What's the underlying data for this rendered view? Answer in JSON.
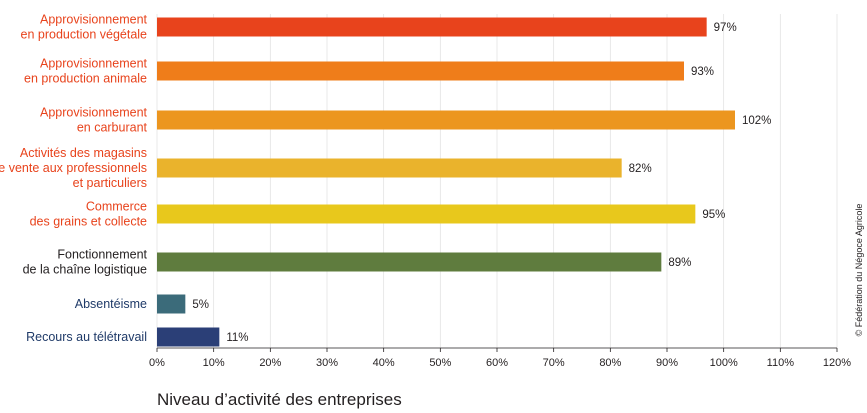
{
  "chart_data": {
    "type": "bar",
    "orientation": "horizontal",
    "categories": [
      {
        "lines": [
          "Approvisionnement",
          "en production végétale"
        ],
        "color": "#e8431c",
        "label_color": "#e8431c"
      },
      {
        "lines": [
          "Approvisionnement",
          "en production animale"
        ],
        "color": "#ef7d1a",
        "label_color": "#e8431c"
      },
      {
        "lines": [
          "Approvisionnement",
          "en carburant"
        ],
        "color": "#ec961f",
        "label_color": "#e8431c"
      },
      {
        "lines": [
          "Activités des magasins",
          "de vente aux professionnels",
          "et particuliers"
        ],
        "color": "#eab32c",
        "label_color": "#e8431c"
      },
      {
        "lines": [
          "Commerce",
          "des grains et collecte"
        ],
        "color": "#e8c81c",
        "label_color": "#e8431c"
      },
      {
        "lines": [
          "Fonctionnement",
          "de la chaîne logistique"
        ],
        "color": "#5f7c3e",
        "label_color": "#231f20"
      },
      {
        "lines": [
          "Absentéisme"
        ],
        "color": "#3b6b7a",
        "label_color": "#1f3a68"
      },
      {
        "lines": [
          "Recours au télétravail"
        ],
        "color": "#2b3f77",
        "label_color": "#1f3a68"
      }
    ],
    "values": [
      97,
      93,
      102,
      82,
      95,
      89,
      5,
      11
    ],
    "value_labels": [
      "97%",
      "93%",
      "102%",
      "82%",
      "95%",
      "89%",
      "5%",
      "11%"
    ],
    "x_ticks": [
      "0%",
      "10%",
      "20%",
      "30%",
      "40%",
      "50%",
      "60%",
      "70%",
      "80%",
      "90%",
      "100%",
      "110%",
      "120%"
    ],
    "xlim": [
      0,
      120
    ],
    "xlabel": "Niveau d’activité des entreprises",
    "grid": "vertical",
    "copyright": "© Fédération du Négoce Agricole"
  }
}
